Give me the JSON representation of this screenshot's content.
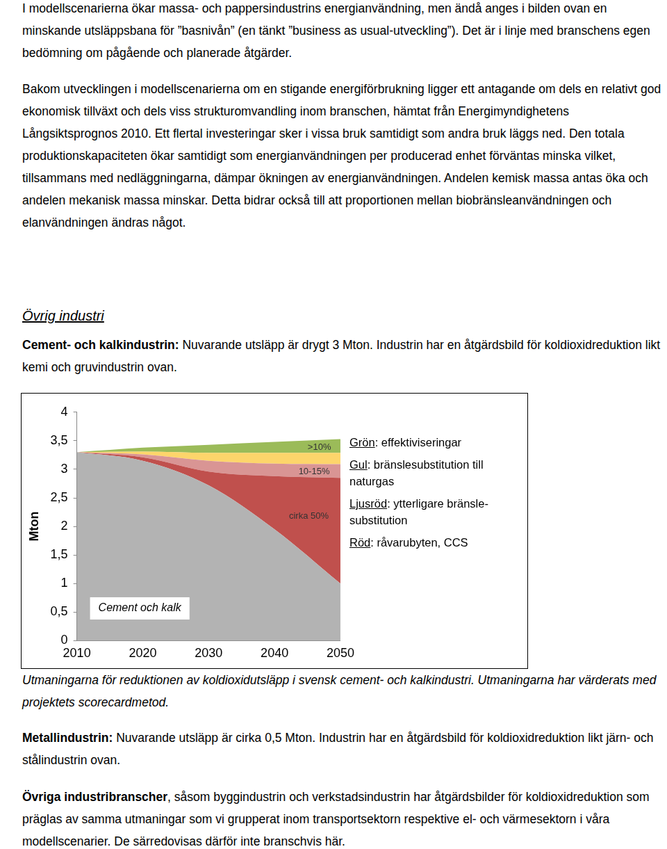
{
  "paragraphs_top": [
    "I modellscenarierna ökar massa- och pappersindustrins energianvändning, men ändå anges i bilden ovan en minskande utsläppsbana för ”basnivån” (en tänkt ”business as usual-utveckling”). Det är i linje med branschens egen bedömning om pågående och planerade åtgärder.",
    "Bakom utvecklingen i modellscenarierna om en stigande energiförbrukning ligger ett antagande om dels en relativt god ekonomisk tillväxt och dels viss strukturomvandling inom branschen, hämtat från Energimyndighetens Långsiktsprognos 2010. Ett flertal investeringar sker i vissa bruk samtidigt som andra bruk läggs ned. Den totala produktionskapaciteten ökar samtidigt som energianvändningen per producerad enhet förväntas minska vilket, tillsammans med nedläggningarna, dämpar ökningen av energianvändningen. Andelen kemisk massa antas öka och andelen mekanisk massa minskar. Detta bidrar också till att proportionen mellan biobränsleanvändningen och elanvändningen ändras något."
  ],
  "heading": "Övrig industri",
  "sections_before": [
    {
      "lead": "Cement- och kalkindustrin:",
      "text": " Nuvarande utsläpp är drygt 3 Mton. Industrin har en åtgärdsbild för koldioxidreduktion likt kemi och gruvindustrin ovan."
    }
  ],
  "chart_data": {
    "type": "area",
    "stacked": true,
    "y_label": "Mton",
    "x": [
      2010,
      2020,
      2030,
      2040,
      2050
    ],
    "xlim": [
      2010,
      2050
    ],
    "xticks": [
      2010,
      2020,
      2030,
      2040,
      2050
    ],
    "ylim": [
      0,
      4
    ],
    "yticks": [
      0,
      {
        "value": 0.5,
        "label": "0,5"
      },
      1,
      {
        "value": 1.5,
        "label": "1,5"
      },
      2,
      {
        "value": 2.5,
        "label": "2,5"
      },
      3,
      {
        "value": 3.5,
        "label": "3,5"
      },
      4
    ],
    "grid": false,
    "series": [
      {
        "name": "Cement och kalk",
        "color": "#b3b3b3",
        "values": [
          3.3,
          3.15,
          2.72,
          1.95,
          1.0
        ]
      },
      {
        "name": "Röd",
        "legend_text": ": råvarubyten, CCS",
        "color": "#c0504d",
        "values": [
          0,
          0.06,
          0.24,
          0.93,
          1.85
        ]
      },
      {
        "name": "Ljusröd",
        "legend_text": ": ytterligare bränsle-substitution",
        "color": "#d99594",
        "values": [
          0,
          0.05,
          0.19,
          0.22,
          0.24
        ]
      },
      {
        "name": "Gul",
        "legend_text": ": bränslesubstitution till naturgas",
        "color": "#fdd56b",
        "values": [
          0,
          0.05,
          0.14,
          0.19,
          0.2
        ]
      },
      {
        "name": "Grön",
        "legend_text": ": effektiviseringar",
        "color": "#9bbb59",
        "values": [
          0,
          0.07,
          0.14,
          0.19,
          0.24
        ]
      }
    ],
    "annotations": [
      ">10%",
      "10-15%",
      "cirka 50%"
    ]
  },
  "caption": "Utmaningarna för reduktionen av koldioxidutsläpp i svensk cement- och kalkindustri. Utmaningarna har värderats med projektets scorecardmetod.",
  "sections_after": [
    {
      "lead": "Metallindustrin:",
      "text": " Nuvarande utsläpp är cirka 0,5 Mton. Industrin har en åtgärdsbild för koldioxidreduktion likt järn- och stålindustrin ovan."
    },
    {
      "lead": "Övriga industribranscher",
      "text": ", såsom byggindustrin och verkstadsindustrin har åtgärdsbilder för koldioxidreduktion som präglas av samma utmaningar som vi grupperat inom transportsektorn respektive el- och värmesektorn i våra modellscenarier. De särredovisas därför inte branschvis här."
    }
  ]
}
